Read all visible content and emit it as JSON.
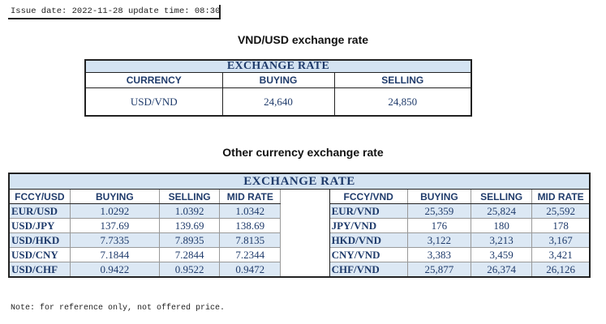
{
  "header": {
    "issue_label": "Issue date: ",
    "issue_date": "2022-11-28",
    "update_label": " update time: ",
    "update_time": "08:30"
  },
  "vnd_usd": {
    "title": "VND/USD exchange rate",
    "band": "EXCHANGE RATE",
    "columns": [
      "CURRENCY",
      "BUYING",
      "SELLING"
    ],
    "row": {
      "currency": "USD/VND",
      "buying": "24,640",
      "selling": "24,850"
    }
  },
  "other": {
    "title": "Other currency exchange rate",
    "band": "EXCHANGE  RATE",
    "left_columns": [
      "FCCY/USD",
      "BUYING",
      "SELLING",
      "MID RATE"
    ],
    "right_columns": [
      "FCCY/VND",
      "BUYING",
      "SELLING",
      "MID RATE"
    ],
    "left_rows": [
      {
        "pair": "EUR/USD",
        "buying": "1.0292",
        "selling": "1.0392",
        "mid": "1.0342"
      },
      {
        "pair": "USD/JPY",
        "buying": "137.69",
        "selling": "139.69",
        "mid": "138.69"
      },
      {
        "pair": "USD/HKD",
        "buying": "7.7335",
        "selling": "7.8935",
        "mid": "7.8135"
      },
      {
        "pair": "USD/CNY",
        "buying": "7.1844",
        "selling": "7.2844",
        "mid": "7.2344"
      },
      {
        "pair": "USD/CHF",
        "buying": "0.9422",
        "selling": "0.9522",
        "mid": "0.9472"
      }
    ],
    "right_rows": [
      {
        "pair": "EUR/VND",
        "buying": "25,359",
        "selling": "25,824",
        "mid": "25,592"
      },
      {
        "pair": "JPY/VND",
        "buying": "176",
        "selling": "180",
        "mid": "178"
      },
      {
        "pair": "HKD/VND",
        "buying": "3,122",
        "selling": "3,213",
        "mid": "3,167"
      },
      {
        "pair": "CNY/VND",
        "buying": "3,383",
        "selling": "3,459",
        "mid": "3,421"
      },
      {
        "pair": "CHF/VND",
        "buying": "25,877",
        "selling": "26,374",
        "mid": "26,126"
      }
    ]
  },
  "note": "Note: for reference only, not offered price.",
  "colors": {
    "band_fill": "#d4e3f2",
    "text_blue": "#1f3b6b",
    "row_shade": "#dce8f4"
  }
}
